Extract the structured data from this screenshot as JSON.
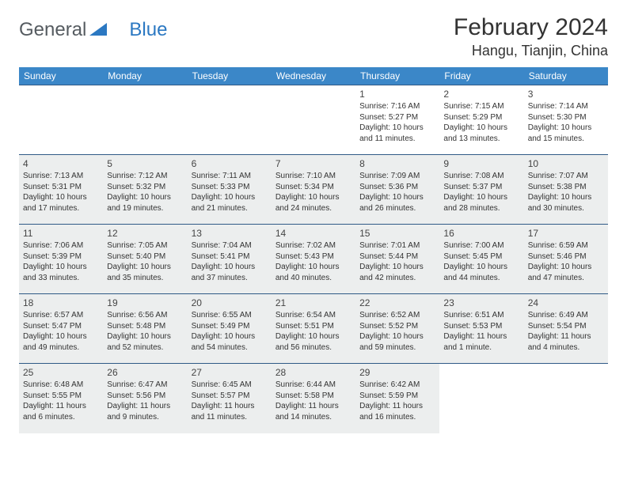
{
  "brand": {
    "part1": "General",
    "part2": "Blue"
  },
  "title": "February 2024",
  "location": "Hangu, Tianjin, China",
  "colors": {
    "header_bg": "#3b87c8",
    "header_text": "#ffffff",
    "cell_border": "#2f5a86",
    "shaded_bg": "#eceeee",
    "logo_gray": "#555b60",
    "logo_blue": "#2b78c2"
  },
  "day_headers": [
    "Sunday",
    "Monday",
    "Tuesday",
    "Wednesday",
    "Thursday",
    "Friday",
    "Saturday"
  ],
  "weeks": [
    [
      {
        "n": "",
        "shaded": false
      },
      {
        "n": "",
        "shaded": false
      },
      {
        "n": "",
        "shaded": false
      },
      {
        "n": "",
        "shaded": false
      },
      {
        "n": "1",
        "shaded": false,
        "sunrise": "Sunrise: 7:16 AM",
        "sunset": "Sunset: 5:27 PM",
        "day1": "Daylight: 10 hours",
        "day2": "and 11 minutes."
      },
      {
        "n": "2",
        "shaded": false,
        "sunrise": "Sunrise: 7:15 AM",
        "sunset": "Sunset: 5:29 PM",
        "day1": "Daylight: 10 hours",
        "day2": "and 13 minutes."
      },
      {
        "n": "3",
        "shaded": false,
        "sunrise": "Sunrise: 7:14 AM",
        "sunset": "Sunset: 5:30 PM",
        "day1": "Daylight: 10 hours",
        "day2": "and 15 minutes."
      }
    ],
    [
      {
        "n": "4",
        "shaded": true,
        "sunrise": "Sunrise: 7:13 AM",
        "sunset": "Sunset: 5:31 PM",
        "day1": "Daylight: 10 hours",
        "day2": "and 17 minutes."
      },
      {
        "n": "5",
        "shaded": true,
        "sunrise": "Sunrise: 7:12 AM",
        "sunset": "Sunset: 5:32 PM",
        "day1": "Daylight: 10 hours",
        "day2": "and 19 minutes."
      },
      {
        "n": "6",
        "shaded": true,
        "sunrise": "Sunrise: 7:11 AM",
        "sunset": "Sunset: 5:33 PM",
        "day1": "Daylight: 10 hours",
        "day2": "and 21 minutes."
      },
      {
        "n": "7",
        "shaded": true,
        "sunrise": "Sunrise: 7:10 AM",
        "sunset": "Sunset: 5:34 PM",
        "day1": "Daylight: 10 hours",
        "day2": "and 24 minutes."
      },
      {
        "n": "8",
        "shaded": true,
        "sunrise": "Sunrise: 7:09 AM",
        "sunset": "Sunset: 5:36 PM",
        "day1": "Daylight: 10 hours",
        "day2": "and 26 minutes."
      },
      {
        "n": "9",
        "shaded": true,
        "sunrise": "Sunrise: 7:08 AM",
        "sunset": "Sunset: 5:37 PM",
        "day1": "Daylight: 10 hours",
        "day2": "and 28 minutes."
      },
      {
        "n": "10",
        "shaded": true,
        "sunrise": "Sunrise: 7:07 AM",
        "sunset": "Sunset: 5:38 PM",
        "day1": "Daylight: 10 hours",
        "day2": "and 30 minutes."
      }
    ],
    [
      {
        "n": "11",
        "shaded": true,
        "sunrise": "Sunrise: 7:06 AM",
        "sunset": "Sunset: 5:39 PM",
        "day1": "Daylight: 10 hours",
        "day2": "and 33 minutes."
      },
      {
        "n": "12",
        "shaded": true,
        "sunrise": "Sunrise: 7:05 AM",
        "sunset": "Sunset: 5:40 PM",
        "day1": "Daylight: 10 hours",
        "day2": "and 35 minutes."
      },
      {
        "n": "13",
        "shaded": true,
        "sunrise": "Sunrise: 7:04 AM",
        "sunset": "Sunset: 5:41 PM",
        "day1": "Daylight: 10 hours",
        "day2": "and 37 minutes."
      },
      {
        "n": "14",
        "shaded": true,
        "sunrise": "Sunrise: 7:02 AM",
        "sunset": "Sunset: 5:43 PM",
        "day1": "Daylight: 10 hours",
        "day2": "and 40 minutes."
      },
      {
        "n": "15",
        "shaded": true,
        "sunrise": "Sunrise: 7:01 AM",
        "sunset": "Sunset: 5:44 PM",
        "day1": "Daylight: 10 hours",
        "day2": "and 42 minutes."
      },
      {
        "n": "16",
        "shaded": true,
        "sunrise": "Sunrise: 7:00 AM",
        "sunset": "Sunset: 5:45 PM",
        "day1": "Daylight: 10 hours",
        "day2": "and 44 minutes."
      },
      {
        "n": "17",
        "shaded": true,
        "sunrise": "Sunrise: 6:59 AM",
        "sunset": "Sunset: 5:46 PM",
        "day1": "Daylight: 10 hours",
        "day2": "and 47 minutes."
      }
    ],
    [
      {
        "n": "18",
        "shaded": true,
        "sunrise": "Sunrise: 6:57 AM",
        "sunset": "Sunset: 5:47 PM",
        "day1": "Daylight: 10 hours",
        "day2": "and 49 minutes."
      },
      {
        "n": "19",
        "shaded": true,
        "sunrise": "Sunrise: 6:56 AM",
        "sunset": "Sunset: 5:48 PM",
        "day1": "Daylight: 10 hours",
        "day2": "and 52 minutes."
      },
      {
        "n": "20",
        "shaded": true,
        "sunrise": "Sunrise: 6:55 AM",
        "sunset": "Sunset: 5:49 PM",
        "day1": "Daylight: 10 hours",
        "day2": "and 54 minutes."
      },
      {
        "n": "21",
        "shaded": true,
        "sunrise": "Sunrise: 6:54 AM",
        "sunset": "Sunset: 5:51 PM",
        "day1": "Daylight: 10 hours",
        "day2": "and 56 minutes."
      },
      {
        "n": "22",
        "shaded": true,
        "sunrise": "Sunrise: 6:52 AM",
        "sunset": "Sunset: 5:52 PM",
        "day1": "Daylight: 10 hours",
        "day2": "and 59 minutes."
      },
      {
        "n": "23",
        "shaded": true,
        "sunrise": "Sunrise: 6:51 AM",
        "sunset": "Sunset: 5:53 PM",
        "day1": "Daylight: 11 hours",
        "day2": "and 1 minute."
      },
      {
        "n": "24",
        "shaded": true,
        "sunrise": "Sunrise: 6:49 AM",
        "sunset": "Sunset: 5:54 PM",
        "day1": "Daylight: 11 hours",
        "day2": "and 4 minutes."
      }
    ],
    [
      {
        "n": "25",
        "shaded": true,
        "sunrise": "Sunrise: 6:48 AM",
        "sunset": "Sunset: 5:55 PM",
        "day1": "Daylight: 11 hours",
        "day2": "and 6 minutes."
      },
      {
        "n": "26",
        "shaded": true,
        "sunrise": "Sunrise: 6:47 AM",
        "sunset": "Sunset: 5:56 PM",
        "day1": "Daylight: 11 hours",
        "day2": "and 9 minutes."
      },
      {
        "n": "27",
        "shaded": true,
        "sunrise": "Sunrise: 6:45 AM",
        "sunset": "Sunset: 5:57 PM",
        "day1": "Daylight: 11 hours",
        "day2": "and 11 minutes."
      },
      {
        "n": "28",
        "shaded": true,
        "sunrise": "Sunrise: 6:44 AM",
        "sunset": "Sunset: 5:58 PM",
        "day1": "Daylight: 11 hours",
        "day2": "and 14 minutes."
      },
      {
        "n": "29",
        "shaded": true,
        "sunrise": "Sunrise: 6:42 AM",
        "sunset": "Sunset: 5:59 PM",
        "day1": "Daylight: 11 hours",
        "day2": "and 16 minutes."
      },
      {
        "n": "",
        "shaded": false
      },
      {
        "n": "",
        "shaded": false
      }
    ]
  ]
}
